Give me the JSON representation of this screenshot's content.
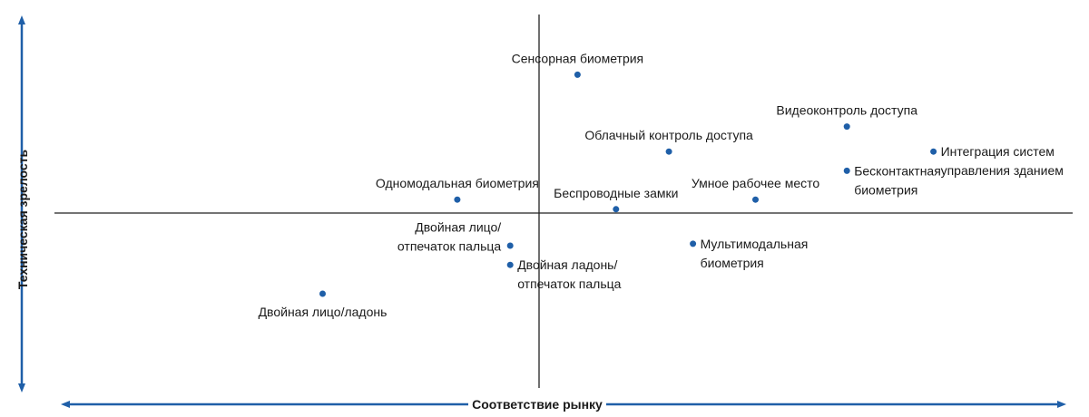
{
  "chart_data": {
    "type": "scatter",
    "title": "",
    "xlabel": "Соответствие рынку",
    "ylabel": "Техническая зрелость",
    "xlim": [
      -10,
      10
    ],
    "ylim": [
      -10,
      10
    ],
    "grid": false,
    "legend": "none",
    "colors": {
      "point": "#1f5fa8",
      "axis_arrow": "#1f5fa8",
      "quadrant_line": "#222222"
    },
    "points": [
      {
        "label": [
          "Сенсорная биометрия"
        ],
        "x": 0.8,
        "y": 7.2,
        "label_pos": "above"
      },
      {
        "label": [
          "Видеоконтроль доступа"
        ],
        "x": 6.4,
        "y": 4.5,
        "label_pos": "above"
      },
      {
        "label": [
          "Облачный контроль доступа"
        ],
        "x": 2.7,
        "y": 3.2,
        "label_pos": "above"
      },
      {
        "label": [
          "Интеграция систем",
          "управления зданием"
        ],
        "x": 8.2,
        "y": 3.2,
        "label_pos": "right"
      },
      {
        "label": [
          "Бесконтактная",
          "биометрия"
        ],
        "x": 6.4,
        "y": 2.2,
        "label_pos": "right"
      },
      {
        "label": [
          "Одномодальная биометрия"
        ],
        "x": -1.7,
        "y": 0.7,
        "label_pos": "above"
      },
      {
        "label": [
          "Беспроводные замки"
        ],
        "x": 1.6,
        "y": 0.2,
        "label_pos": "above"
      },
      {
        "label": [
          "Умное рабочее место"
        ],
        "x": 4.5,
        "y": 0.7,
        "label_pos": "above"
      },
      {
        "label": [
          "Двойная лицо/",
          "отпечаток пальца"
        ],
        "x": -0.6,
        "y": -1.7,
        "label_pos": "left"
      },
      {
        "label": [
          "Двойная ладонь/",
          "отпечаток пальца"
        ],
        "x": -0.6,
        "y": -2.7,
        "label_pos": "right"
      },
      {
        "label": [
          "Мультимодальная",
          "биометрия"
        ],
        "x": 3.2,
        "y": -1.6,
        "label_pos": "right"
      },
      {
        "label": [
          "Двойная лицо/ладонь"
        ],
        "x": -4.5,
        "y": -4.2,
        "label_pos": "below"
      }
    ]
  }
}
